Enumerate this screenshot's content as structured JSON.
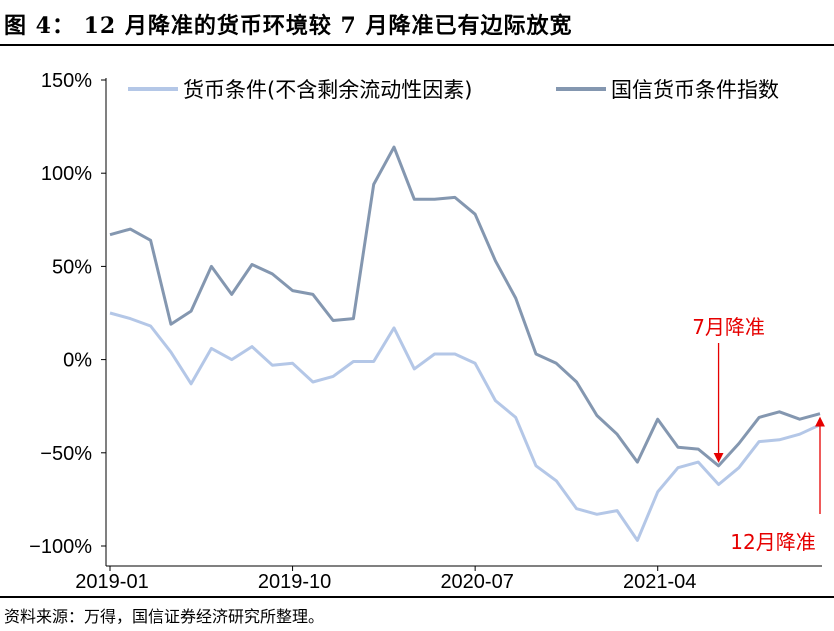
{
  "title": "图 4： 12 月降准的货币环境较 7 月降准已有边际放宽",
  "source": "资料来源：万得，国信证券经济研究所整理。",
  "colors": {
    "series1": "#b4c7e7",
    "series2": "#8497b0",
    "annotation": "#e60000"
  },
  "chart_data": {
    "type": "line",
    "title": "",
    "xlabel": "",
    "ylabel": "",
    "ylim": [
      -100,
      150
    ],
    "yticks": [
      150,
      100,
      50,
      0,
      -50,
      -100
    ],
    "ytick_labels": [
      "150%",
      "100%",
      "50%",
      "0%",
      "−50%",
      "−100%"
    ],
    "y_unit": "%",
    "x": [
      "2019-01",
      "2019-02",
      "2019-03",
      "2019-04",
      "2019-05",
      "2019-06",
      "2019-07",
      "2019-08",
      "2019-09",
      "2019-10",
      "2019-11",
      "2019-12",
      "2020-01",
      "2020-02",
      "2020-03",
      "2020-04",
      "2020-05",
      "2020-06",
      "2020-07",
      "2020-08",
      "2020-09",
      "2020-10",
      "2020-11",
      "2020-12",
      "2021-01",
      "2021-02",
      "2021-03",
      "2021-04",
      "2021-05",
      "2021-06",
      "2021-07",
      "2021-08",
      "2021-09",
      "2021-10",
      "2021-11",
      "2021-12"
    ],
    "xtick_labels": [
      "2019-01",
      "2019-10",
      "2020-07",
      "2021-04"
    ],
    "xtick_index": [
      0,
      9,
      18,
      27
    ],
    "grid": false,
    "legend_position": "top",
    "series": [
      {
        "name": "货币条件(不含剩余流动性因素)",
        "color": "#b4c7e7",
        "values": [
          25,
          22,
          18,
          4,
          -13,
          6,
          0,
          7,
          -3,
          -2,
          -12,
          -9,
          -1,
          -1,
          17,
          -5,
          3,
          3,
          -2,
          -22,
          -31,
          -57,
          -65,
          -80,
          -83,
          -81,
          -97,
          -71,
          -58,
          -55,
          -67,
          -58,
          -44,
          -43,
          -40,
          -35
        ]
      },
      {
        "name": "国信货币条件指数",
        "color": "#8497b0",
        "values": [
          67,
          70,
          64,
          19,
          26,
          50,
          35,
          51,
          46,
          37,
          35,
          21,
          22,
          94,
          114,
          86,
          86,
          87,
          78,
          53,
          33,
          3,
          -2,
          -12,
          -30,
          -40,
          -55,
          -32,
          -47,
          -48,
          -57,
          -45,
          -31,
          -28,
          -32,
          -29
        ]
      }
    ],
    "annotations": [
      {
        "text": "7月降准",
        "at_index": 30
      },
      {
        "text": "12月降准",
        "at_index": 35
      }
    ]
  }
}
